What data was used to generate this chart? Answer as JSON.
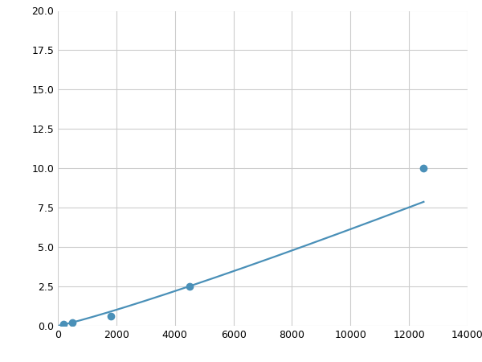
{
  "x": [
    200,
    500,
    1800,
    4500,
    12500
  ],
  "y": [
    0.1,
    0.2,
    0.6,
    2.5,
    10.0
  ],
  "line_color": "#4a90b8",
  "marker_color": "#4a90b8",
  "marker_size": 6,
  "line_width": 1.6,
  "xlim": [
    0,
    14000
  ],
  "ylim": [
    0,
    20.0
  ],
  "xticks": [
    0,
    2000,
    4000,
    6000,
    8000,
    10000,
    12000,
    14000
  ],
  "yticks": [
    0.0,
    2.5,
    5.0,
    7.5,
    10.0,
    12.5,
    15.0,
    17.5,
    20.0
  ],
  "grid_color": "#cccccc",
  "background_color": "#ffffff"
}
